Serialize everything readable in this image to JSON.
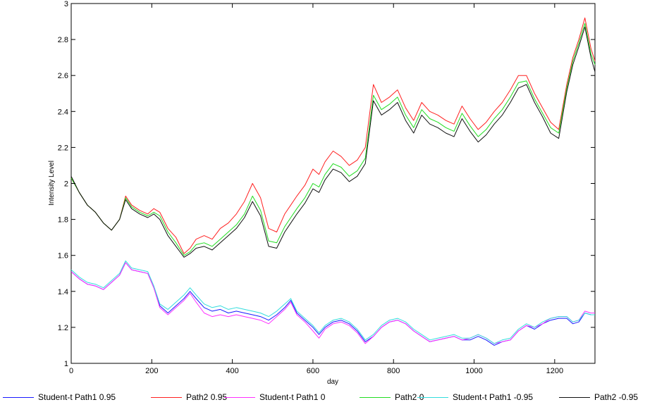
{
  "chart_data": {
    "type": "line",
    "title": "",
    "xlabel": "day",
    "ylabel": "Intensity Level",
    "xlim": [
      0,
      1300
    ],
    "ylim": [
      1,
      3
    ],
    "xticks": [
      0,
      200,
      400,
      600,
      800,
      1000,
      1200
    ],
    "yticks": [
      1,
      1.2,
      1.4,
      1.6,
      1.8,
      2,
      2.2,
      2.4,
      2.6,
      2.8,
      3
    ],
    "xtick_labels": [
      "0",
      "200",
      "400",
      "600",
      "800",
      "1000",
      "1200"
    ],
    "ytick_labels": [
      "1",
      "1.2",
      "1.4",
      "1.6",
      "1.8",
      "2",
      "2.2",
      "2.4",
      "2.6",
      "2.8",
      "3"
    ],
    "grid": false,
    "legend_position": "bottom",
    "series": [
      {
        "name": "Student-t Path1 0.95",
        "color": "#1a1aff",
        "x": [
          0,
          20,
          40,
          60,
          80,
          100,
          120,
          135,
          150,
          170,
          190,
          205,
          220,
          240,
          260,
          280,
          295,
          310,
          330,
          350,
          370,
          390,
          410,
          430,
          450,
          470,
          490,
          510,
          530,
          545,
          560,
          580,
          600,
          615,
          630,
          650,
          670,
          690,
          710,
          730,
          750,
          770,
          790,
          810,
          830,
          850,
          870,
          890,
          910,
          930,
          950,
          970,
          990,
          1010,
          1030,
          1050,
          1070,
          1090,
          1110,
          1130,
          1150,
          1170,
          1190,
          1210,
          1230,
          1245,
          1260,
          1275,
          1290,
          1300
        ],
        "y": [
          1.51,
          1.47,
          1.44,
          1.43,
          1.41,
          1.45,
          1.49,
          1.56,
          1.52,
          1.51,
          1.5,
          1.42,
          1.32,
          1.28,
          1.32,
          1.36,
          1.4,
          1.36,
          1.31,
          1.29,
          1.3,
          1.28,
          1.29,
          1.28,
          1.27,
          1.26,
          1.24,
          1.27,
          1.31,
          1.35,
          1.28,
          1.24,
          1.2,
          1.16,
          1.2,
          1.23,
          1.24,
          1.22,
          1.18,
          1.12,
          1.15,
          1.2,
          1.23,
          1.24,
          1.22,
          1.18,
          1.15,
          1.12,
          1.13,
          1.14,
          1.15,
          1.13,
          1.13,
          1.15,
          1.13,
          1.1,
          1.12,
          1.13,
          1.18,
          1.21,
          1.19,
          1.22,
          1.24,
          1.25,
          1.25,
          1.22,
          1.23,
          1.28,
          1.27,
          1.27
        ]
      },
      {
        "name": "Path2 0.95",
        "color": "#ff2020",
        "x": [
          0,
          20,
          40,
          60,
          80,
          100,
          120,
          135,
          150,
          170,
          190,
          205,
          220,
          240,
          260,
          280,
          295,
          310,
          330,
          350,
          370,
          390,
          410,
          430,
          450,
          470,
          490,
          510,
          530,
          545,
          560,
          580,
          600,
          615,
          630,
          650,
          670,
          690,
          710,
          730,
          750,
          770,
          790,
          810,
          830,
          850,
          870,
          890,
          910,
          930,
          950,
          970,
          990,
          1010,
          1030,
          1050,
          1070,
          1090,
          1110,
          1130,
          1150,
          1170,
          1190,
          1210,
          1230,
          1245,
          1260,
          1275,
          1290,
          1300
        ],
        "y": [
          2.03,
          1.95,
          1.88,
          1.84,
          1.78,
          1.74,
          1.8,
          1.93,
          1.88,
          1.85,
          1.83,
          1.86,
          1.84,
          1.75,
          1.7,
          1.61,
          1.64,
          1.69,
          1.71,
          1.69,
          1.75,
          1.78,
          1.83,
          1.9,
          2.0,
          1.92,
          1.75,
          1.73,
          1.83,
          1.88,
          1.93,
          1.99,
          2.08,
          2.05,
          2.12,
          2.18,
          2.15,
          2.1,
          2.13,
          2.2,
          2.55,
          2.45,
          2.48,
          2.52,
          2.42,
          2.35,
          2.45,
          2.4,
          2.38,
          2.35,
          2.33,
          2.43,
          2.36,
          2.3,
          2.34,
          2.4,
          2.45,
          2.52,
          2.6,
          2.6,
          2.5,
          2.42,
          2.34,
          2.3,
          2.55,
          2.7,
          2.8,
          2.92,
          2.75,
          2.68
        ]
      },
      {
        "name": "Student-t Path1 0",
        "color": "#ff30ff",
        "x": [
          0,
          20,
          40,
          60,
          80,
          100,
          120,
          135,
          150,
          170,
          190,
          205,
          220,
          240,
          260,
          280,
          295,
          310,
          330,
          350,
          370,
          390,
          410,
          430,
          450,
          470,
          490,
          510,
          530,
          545,
          560,
          580,
          600,
          615,
          630,
          650,
          670,
          690,
          710,
          730,
          750,
          770,
          790,
          810,
          830,
          850,
          870,
          890,
          910,
          930,
          950,
          970,
          990,
          1010,
          1030,
          1050,
          1070,
          1090,
          1110,
          1130,
          1150,
          1170,
          1190,
          1210,
          1230,
          1245,
          1260,
          1275,
          1290,
          1300
        ],
        "y": [
          1.51,
          1.47,
          1.44,
          1.43,
          1.41,
          1.45,
          1.49,
          1.56,
          1.52,
          1.51,
          1.5,
          1.42,
          1.31,
          1.27,
          1.31,
          1.35,
          1.39,
          1.34,
          1.28,
          1.26,
          1.27,
          1.26,
          1.27,
          1.26,
          1.25,
          1.24,
          1.22,
          1.26,
          1.3,
          1.34,
          1.27,
          1.23,
          1.18,
          1.14,
          1.19,
          1.22,
          1.23,
          1.21,
          1.17,
          1.11,
          1.15,
          1.2,
          1.23,
          1.24,
          1.22,
          1.18,
          1.15,
          1.12,
          1.13,
          1.14,
          1.15,
          1.13,
          1.14,
          1.16,
          1.14,
          1.11,
          1.12,
          1.13,
          1.18,
          1.21,
          1.2,
          1.22,
          1.25,
          1.26,
          1.26,
          1.23,
          1.24,
          1.29,
          1.28,
          1.28
        ]
      },
      {
        "name": "Path2 0",
        "color": "#22dd22",
        "x": [
          0,
          20,
          40,
          60,
          80,
          100,
          120,
          135,
          150,
          170,
          190,
          205,
          220,
          240,
          260,
          280,
          295,
          310,
          330,
          350,
          370,
          390,
          410,
          430,
          450,
          470,
          490,
          510,
          530,
          545,
          560,
          580,
          600,
          615,
          630,
          650,
          670,
          690,
          710,
          730,
          750,
          770,
          790,
          810,
          830,
          850,
          870,
          890,
          910,
          930,
          950,
          970,
          990,
          1010,
          1030,
          1050,
          1070,
          1090,
          1110,
          1130,
          1150,
          1170,
          1190,
          1210,
          1230,
          1245,
          1260,
          1275,
          1290,
          1300
        ],
        "y": [
          2.03,
          1.95,
          1.88,
          1.84,
          1.78,
          1.74,
          1.8,
          1.92,
          1.87,
          1.84,
          1.82,
          1.84,
          1.82,
          1.73,
          1.67,
          1.6,
          1.62,
          1.66,
          1.67,
          1.65,
          1.69,
          1.73,
          1.77,
          1.83,
          1.93,
          1.85,
          1.68,
          1.67,
          1.76,
          1.81,
          1.86,
          1.92,
          2.0,
          1.98,
          2.05,
          2.11,
          2.09,
          2.04,
          2.07,
          2.14,
          2.49,
          2.41,
          2.44,
          2.48,
          2.38,
          2.31,
          2.41,
          2.36,
          2.34,
          2.31,
          2.29,
          2.39,
          2.32,
          2.26,
          2.3,
          2.36,
          2.41,
          2.48,
          2.56,
          2.57,
          2.47,
          2.39,
          2.31,
          2.28,
          2.53,
          2.68,
          2.78,
          2.89,
          2.72,
          2.66
        ]
      },
      {
        "name": "Student-t Path1 -0.95",
        "color": "#33dddd",
        "x": [
          0,
          20,
          40,
          60,
          80,
          100,
          120,
          135,
          150,
          170,
          190,
          205,
          220,
          240,
          260,
          280,
          295,
          310,
          330,
          350,
          370,
          390,
          410,
          430,
          450,
          470,
          490,
          510,
          530,
          545,
          560,
          580,
          600,
          615,
          630,
          650,
          670,
          690,
          710,
          730,
          750,
          770,
          790,
          810,
          830,
          850,
          870,
          890,
          910,
          930,
          950,
          970,
          990,
          1010,
          1030,
          1050,
          1070,
          1090,
          1110,
          1130,
          1150,
          1170,
          1190,
          1210,
          1230,
          1245,
          1260,
          1275,
          1290,
          1300
        ],
        "y": [
          1.52,
          1.48,
          1.45,
          1.44,
          1.42,
          1.46,
          1.5,
          1.57,
          1.53,
          1.52,
          1.51,
          1.43,
          1.33,
          1.3,
          1.34,
          1.38,
          1.42,
          1.38,
          1.33,
          1.31,
          1.32,
          1.3,
          1.31,
          1.3,
          1.29,
          1.28,
          1.26,
          1.29,
          1.33,
          1.36,
          1.29,
          1.25,
          1.21,
          1.17,
          1.21,
          1.24,
          1.25,
          1.23,
          1.19,
          1.13,
          1.16,
          1.21,
          1.24,
          1.25,
          1.23,
          1.19,
          1.16,
          1.13,
          1.14,
          1.15,
          1.16,
          1.14,
          1.14,
          1.16,
          1.14,
          1.11,
          1.13,
          1.14,
          1.19,
          1.22,
          1.2,
          1.23,
          1.25,
          1.26,
          1.26,
          1.23,
          1.24,
          1.28,
          1.27,
          1.27
        ]
      },
      {
        "name": "Path2 -0.95",
        "color": "#111111",
        "x": [
          0,
          20,
          40,
          60,
          80,
          100,
          120,
          135,
          150,
          170,
          190,
          205,
          220,
          240,
          260,
          280,
          295,
          310,
          330,
          350,
          370,
          390,
          410,
          430,
          450,
          470,
          490,
          510,
          530,
          545,
          560,
          580,
          600,
          615,
          630,
          650,
          670,
          690,
          710,
          730,
          750,
          770,
          790,
          810,
          830,
          850,
          870,
          890,
          910,
          930,
          950,
          970,
          990,
          1010,
          1030,
          1050,
          1070,
          1090,
          1110,
          1130,
          1150,
          1170,
          1190,
          1210,
          1230,
          1245,
          1260,
          1275,
          1290,
          1300
        ],
        "y": [
          2.04,
          1.95,
          1.88,
          1.84,
          1.78,
          1.74,
          1.8,
          1.91,
          1.86,
          1.83,
          1.81,
          1.83,
          1.8,
          1.71,
          1.65,
          1.59,
          1.61,
          1.64,
          1.65,
          1.63,
          1.67,
          1.71,
          1.75,
          1.81,
          1.9,
          1.82,
          1.65,
          1.64,
          1.73,
          1.78,
          1.83,
          1.89,
          1.97,
          1.95,
          2.02,
          2.08,
          2.06,
          2.01,
          2.04,
          2.11,
          2.46,
          2.38,
          2.41,
          2.45,
          2.35,
          2.28,
          2.38,
          2.33,
          2.31,
          2.28,
          2.26,
          2.36,
          2.29,
          2.23,
          2.27,
          2.33,
          2.38,
          2.45,
          2.53,
          2.55,
          2.45,
          2.37,
          2.28,
          2.25,
          2.51,
          2.66,
          2.76,
          2.87,
          2.7,
          2.62
        ]
      }
    ]
  }
}
